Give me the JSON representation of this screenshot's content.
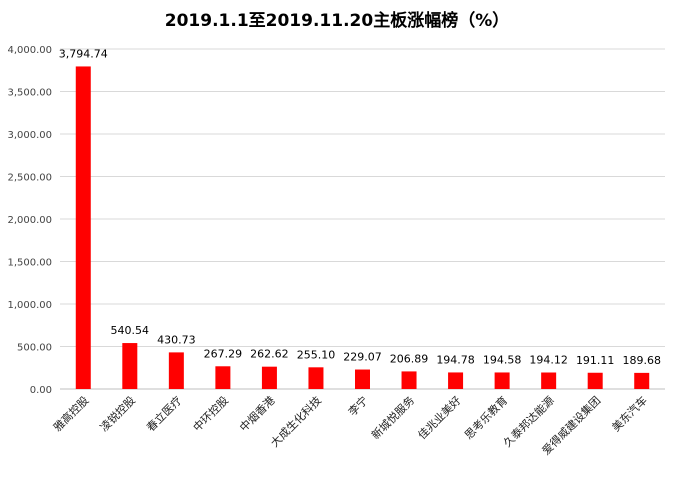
{
  "chart_data": {
    "type": "bar",
    "title": "2019.1.1至2019.11.20主板涨幅榜（%）",
    "xlabel": "",
    "ylabel": "",
    "ylim": [
      0,
      4000
    ],
    "yticks": [
      "0.00",
      "500.00",
      "1,000.00",
      "1,500.00",
      "2,000.00",
      "2,500.00",
      "3,000.00",
      "3,500.00",
      "4,000.00"
    ],
    "categories": [
      "雅高控股",
      "凌锐控股",
      "春立医疗",
      "中环控股",
      "中烟香港",
      "大成生化科技",
      "李宁",
      "新城悦服务",
      "佳兆业美好",
      "思考乐教育",
      "久泰邦达能源",
      "爱得威建设集团",
      "美东汽车"
    ],
    "values": [
      3794.74,
      540.54,
      430.73,
      267.29,
      262.62,
      255.1,
      229.07,
      206.89,
      194.78,
      194.58,
      194.12,
      191.11,
      189.68
    ],
    "value_labels": [
      "3,794.74",
      "540.54",
      "430.73",
      "267.29",
      "262.62",
      "255.10",
      "229.07",
      "206.89",
      "194.78",
      "194.58",
      "194.12",
      "191.11",
      "189.68"
    ],
    "bar_color": "#ff0000",
    "grid": true,
    "legend": "none"
  }
}
